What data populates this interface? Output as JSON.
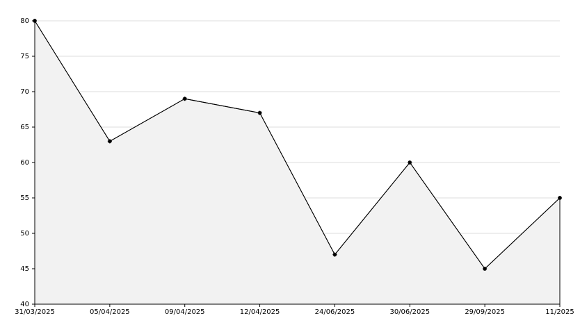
{
  "chart_data": {
    "type": "area",
    "categories": [
      "31/03/2025",
      "05/04/2025",
      "09/04/2025",
      "12/04/2025",
      "24/06/2025",
      "30/06/2025",
      "29/09/2025",
      "11/2025"
    ],
    "values": [
      80,
      63,
      69,
      67,
      47,
      60,
      45,
      55
    ],
    "color": "#000000",
    "fill": "#f2f2f2",
    "ylim": [
      40,
      80
    ],
    "yticks": [
      40,
      45,
      50,
      55,
      60,
      65,
      70,
      75,
      80
    ],
    "grid": true
  }
}
